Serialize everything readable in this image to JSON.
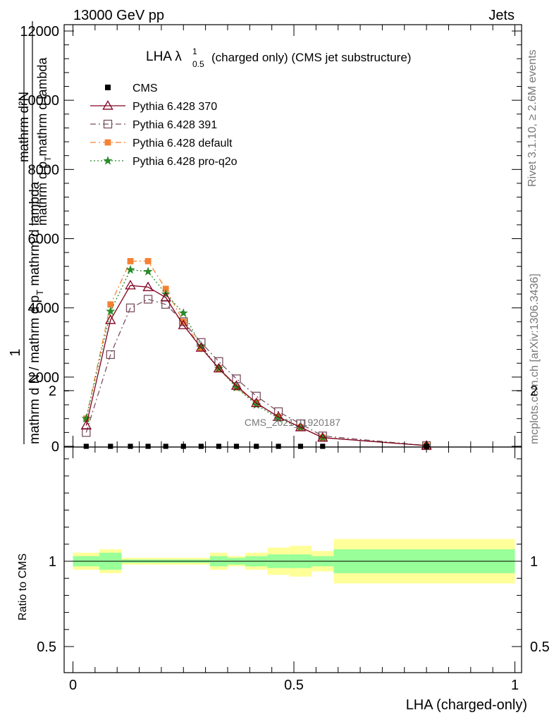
{
  "header": {
    "energy_label": "13000 GeV pp",
    "category_label": "Jets"
  },
  "side_labels": {
    "rivet": "Rivet 3.1.10, ≥ 2.6M events",
    "mcplots": "mcplots.cern.ch [arXiv:1306.3436]"
  },
  "watermark": "CMS_2021_I1920187",
  "chart_data": [
    {
      "type": "line",
      "title_main": "LHA λ",
      "title_sup": "1",
      "title_sub": "0.5",
      "title_rest": "(charged only) (CMS jet substructure)",
      "ylabel_top_num": "mathrm d²N",
      "ylabel_top_den": "mathrm d p",
      "ylabel_top_den_sub": "T",
      "ylabel_top_den_rest": "mathrm d lambda",
      "ylabel_left_num": "1",
      "ylabel_left_den": "mathrm d N / mathrm d p",
      "ylabel_left_den_sub": "T",
      "ylabel_left_den_rest": " mathrm d lambda",
      "xlim": [
        0,
        1
      ],
      "ylim": [
        0,
        12000
      ],
      "yticks": [
        0,
        2000,
        4000,
        6000,
        8000,
        10000,
        12000
      ],
      "ytick_labels": [
        "0",
        "2000",
        "4000",
        "6000",
        "8000",
        "10000",
        "12000"
      ],
      "x": [
        0.03,
        0.085,
        0.13,
        0.17,
        0.21,
        0.25,
        0.29,
        0.33,
        0.37,
        0.415,
        0.465,
        0.515,
        0.565,
        0.8
      ],
      "series": [
        {
          "name": "CMS",
          "color": "#000000",
          "marker": "square-filled",
          "line": "none",
          "values": [
            20,
            20,
            20,
            20,
            20,
            20,
            20,
            20,
            20,
            20,
            20,
            20,
            20,
            20
          ]
        },
        {
          "name": "Pythia 6.428 370",
          "color": "#800020",
          "marker": "triangle-open",
          "line": "solid",
          "values": [
            600,
            3650,
            4650,
            4600,
            4300,
            3500,
            2850,
            2250,
            1750,
            1250,
            850,
            550,
            250,
            20
          ]
        },
        {
          "name": "Pythia 6.428 391",
          "color": "#7a5060",
          "marker": "square-open",
          "line": "dashdot",
          "values": [
            400,
            2650,
            4000,
            4250,
            4100,
            3600,
            3000,
            2450,
            1950,
            1450,
            1000,
            650,
            300,
            20
          ]
        },
        {
          "name": "Pythia 6.428 default",
          "color": "#f58232",
          "marker": "square-filled",
          "line": "dashdot",
          "values": [
            800,
            4100,
            5350,
            5350,
            4550,
            3600,
            2850,
            2250,
            1700,
            1250,
            850,
            550,
            250,
            20
          ]
        },
        {
          "name": "Pythia 6.428 pro-q2o",
          "color": "#2a8a2a",
          "marker": "star",
          "line": "dotted",
          "values": [
            800,
            3900,
            5100,
            5050,
            4400,
            3850,
            2900,
            2250,
            1700,
            1200,
            800,
            550,
            250,
            20
          ]
        }
      ]
    },
    {
      "type": "area",
      "ylabel": "Ratio to CMS",
      "xlabel": "LHA (charged-only)",
      "xlim": [
        0,
        1
      ],
      "ylim": [
        0.35,
        2.3
      ],
      "xticks": [
        0,
        0.5,
        1
      ],
      "xtick_labels": [
        "0",
        "0.5",
        "1"
      ],
      "yticks": [
        0.5,
        1,
        2
      ],
      "ytick_labels": [
        "0.5",
        "1",
        "2"
      ],
      "bands": {
        "bin_edges": [
          0,
          0.06,
          0.11,
          0.15,
          0.19,
          0.23,
          0.27,
          0.31,
          0.35,
          0.39,
          0.44,
          0.49,
          0.54,
          0.59,
          1.0
        ],
        "inner_color": "#99ff99",
        "outer_color": "#ffff99",
        "inner_lo": [
          0.97,
          0.95,
          0.99,
          0.99,
          0.99,
          0.99,
          0.99,
          0.97,
          0.98,
          0.97,
          0.96,
          0.96,
          0.97,
          0.93
        ],
        "inner_hi": [
          1.03,
          1.05,
          1.01,
          1.01,
          1.01,
          1.01,
          1.01,
          1.03,
          1.02,
          1.03,
          1.04,
          1.04,
          1.03,
          1.07
        ],
        "outer_lo": [
          0.95,
          0.93,
          0.98,
          0.98,
          0.98,
          0.98,
          0.98,
          0.95,
          0.97,
          0.95,
          0.92,
          0.91,
          0.94,
          0.87
        ],
        "outer_hi": [
          1.05,
          1.07,
          1.02,
          1.02,
          1.02,
          1.02,
          1.02,
          1.05,
          1.03,
          1.05,
          1.08,
          1.09,
          1.06,
          1.13
        ]
      },
      "reference_line": 1
    }
  ]
}
